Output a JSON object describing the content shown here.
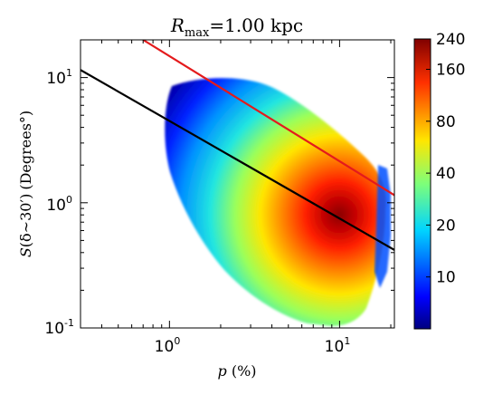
{
  "chart_data": {
    "type": "heatmap",
    "title": "R_max = 1.00 kpc",
    "title_parts": {
      "main": "R",
      "sub": "max",
      "rest": "=1.00 kpc"
    },
    "xlabel": "p (%)",
    "xlabel_parts": {
      "var": "p",
      "unit": " (%)"
    },
    "ylabel": "S(δ∼30′) (Degrees°)",
    "ylabel_parts": {
      "var": "S",
      "arg": "(δ∼30′)",
      "unit": "(Degrees°)"
    },
    "x_scale": "log",
    "y_scale": "log",
    "xlim": [
      0.3,
      21
    ],
    "ylim": [
      0.1,
      20
    ],
    "x_ticks": [
      {
        "value": 1,
        "base": "10",
        "exp": "0"
      },
      {
        "value": 10,
        "base": "10",
        "exp": "1"
      }
    ],
    "y_ticks": [
      {
        "value": 0.1,
        "base": "10",
        "exp": "-1"
      },
      {
        "value": 1,
        "base": "10",
        "exp": "0"
      },
      {
        "value": 10,
        "base": "10",
        "exp": "1"
      }
    ],
    "grid": false,
    "lines": [
      {
        "color": "#000000",
        "points": [
          [
            0.3,
            11.5
          ],
          [
            21,
            0.42
          ]
        ]
      },
      {
        "color": "#e41a1c",
        "points": [
          [
            0.7,
            20
          ],
          [
            21,
            1.15
          ]
        ]
      }
    ],
    "density_peak": {
      "x": 10,
      "y": 0.8
    },
    "colorbar": {
      "scale": "log",
      "min": 5,
      "max": 240,
      "ticks": [
        {
          "value": 240,
          "label": "240"
        },
        {
          "value": 160,
          "label": "160"
        },
        {
          "value": 80,
          "label": "80"
        },
        {
          "value": 40,
          "label": "40"
        },
        {
          "value": 20,
          "label": "20"
        },
        {
          "value": 10,
          "label": "10"
        }
      ],
      "colormap": "jet"
    }
  }
}
